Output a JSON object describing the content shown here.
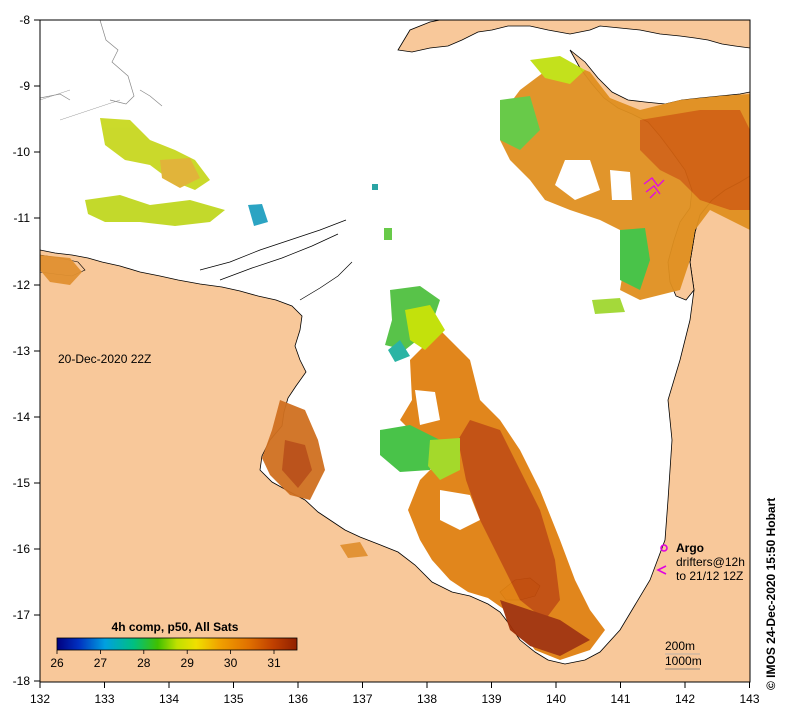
{
  "map": {
    "date_label": "20-Dec-2020 22Z",
    "credit": "© IMOS 24-Dec-2020 15:50 Hobart",
    "lon_ticks": [
      "132",
      "133",
      "134",
      "135",
      "136",
      "137",
      "138",
      "139",
      "140",
      "141",
      "142",
      "143"
    ],
    "lat_ticks": [
      "-8",
      "-9",
      "-10",
      "-11",
      "-12",
      "-13",
      "-14",
      "-15",
      "-16",
      "-17",
      "-18"
    ],
    "colors": {
      "land": "#f8c89a",
      "ocean_nodata": "#ffffff",
      "coastline": "#000000"
    },
    "colorbar": {
      "title": "4h comp, p50, All Sats",
      "min": 26,
      "max": 31.8,
      "tick_labels": [
        "26",
        "27",
        "28",
        "29",
        "30",
        "31"
      ]
    },
    "legend": {
      "argo_label": "Argo",
      "drifters_line1": "drifters@12h",
      "drifters_line2": "to 21/12 12Z",
      "argo_color": "#e000e0"
    },
    "isobaths": [
      "200m",
      "1000m"
    ]
  }
}
